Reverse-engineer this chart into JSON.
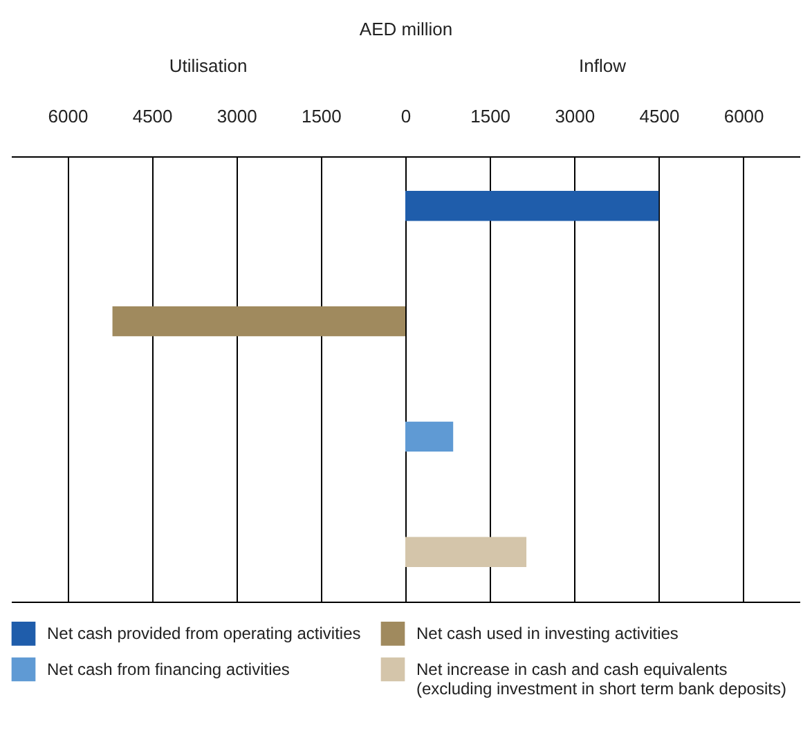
{
  "chart_data": {
    "type": "bar",
    "orientation": "horizontal",
    "xlabel": "AED million",
    "annotations": [
      "Utilisation",
      "Inflow"
    ],
    "categories": [
      null,
      null,
      null,
      null
    ],
    "series": [
      {
        "name": "Net cash provided from operating activities",
        "color": "#1f5dab",
        "values": [
          4500,
          null,
          null,
          null
        ]
      },
      {
        "name": "Net cash used in investing activities",
        "color": "#a08a5e",
        "values": [
          null,
          -5200,
          null,
          null
        ]
      },
      {
        "name": "Net cash from financing activities",
        "color": "#5f9ad4",
        "values": [
          null,
          null,
          850,
          null
        ]
      },
      {
        "name": "Net increase in cash and cash equivalents (excluding investment in short term bank deposits)",
        "color": "#d4c5aa",
        "values": [
          null,
          null,
          null,
          2150
        ]
      }
    ],
    "xlim": [
      -7000,
      7000
    ],
    "xticks": [
      {
        "value": -6000,
        "label": "6000"
      },
      {
        "value": -4500,
        "label": "4500"
      },
      {
        "value": -3000,
        "label": "3000"
      },
      {
        "value": -1500,
        "label": "1500"
      },
      0,
      1500,
      3000,
      4500,
      6000
    ],
    "grid": "x",
    "legend": "bottom"
  }
}
